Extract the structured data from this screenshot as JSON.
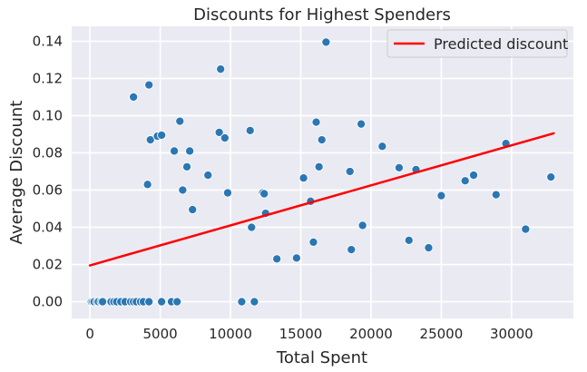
{
  "chart_data": {
    "type": "scatter",
    "title": "Discounts for Highest Spenders",
    "xlabel": "Total Spent",
    "ylabel": "Average Discount",
    "xlim": [
      -1300,
      34400
    ],
    "ylim": [
      -0.009,
      0.148
    ],
    "xticks": [
      0,
      5000,
      10000,
      15000,
      20000,
      25000,
      30000
    ],
    "yticks": [
      0.0,
      0.02,
      0.04,
      0.06,
      0.08,
      0.1,
      0.12,
      0.14
    ],
    "ytick_labels": [
      "0.00",
      "0.02",
      "0.04",
      "0.06",
      "0.08",
      "0.10",
      "0.12",
      "0.14"
    ],
    "grid": true,
    "background": "#eaeaf2",
    "point_color": "#2a77b4",
    "line_color": "#ff0000",
    "legend": {
      "position": "top-right",
      "entries": [
        "Predicted discount"
      ]
    },
    "regression_line": {
      "name": "Predicted discount",
      "x": [
        0,
        33000
      ],
      "y": [
        0.0195,
        0.0905
      ]
    },
    "points": [
      [
        100,
        0
      ],
      [
        200,
        0
      ],
      [
        300,
        0
      ],
      [
        500,
        0
      ],
      [
        600,
        0
      ],
      [
        800,
        0
      ],
      [
        900,
        0
      ],
      [
        1500,
        0
      ],
      [
        1700,
        0
      ],
      [
        1900,
        0
      ],
      [
        2200,
        0
      ],
      [
        2500,
        0
      ],
      [
        2900,
        0
      ],
      [
        3100,
        0
      ],
      [
        3300,
        0
      ],
      [
        3600,
        0
      ],
      [
        3800,
        0
      ],
      [
        4200,
        0
      ],
      [
        5100,
        0
      ],
      [
        5800,
        0
      ],
      [
        6200,
        0
      ],
      [
        10800,
        0
      ],
      [
        11700,
        0
      ],
      [
        3100,
        0.11
      ],
      [
        4200,
        0.1165
      ],
      [
        4100,
        0.063
      ],
      [
        4300,
        0.087
      ],
      [
        4800,
        0.089
      ],
      [
        5100,
        0.0895
      ],
      [
        6000,
        0.081
      ],
      [
        6400,
        0.097
      ],
      [
        6600,
        0.06
      ],
      [
        6900,
        0.0725
      ],
      [
        7100,
        0.081
      ],
      [
        7300,
        0.0495
      ],
      [
        8400,
        0.068
      ],
      [
        9200,
        0.091
      ],
      [
        9300,
        0.125
      ],
      [
        9600,
        0.088
      ],
      [
        9800,
        0.0585
      ],
      [
        11400,
        0.092
      ],
      [
        11500,
        0.04
      ],
      [
        12300,
        0.0585
      ],
      [
        12400,
        0.058
      ],
      [
        12500,
        0.0475
      ],
      [
        13300,
        0.023
      ],
      [
        14700,
        0.0235
      ],
      [
        15200,
        0.0665
      ],
      [
        15700,
        0.054
      ],
      [
        15900,
        0.032
      ],
      [
        16100,
        0.0965
      ],
      [
        16300,
        0.0725
      ],
      [
        16500,
        0.087
      ],
      [
        16800,
        0.1395
      ],
      [
        18500,
        0.07
      ],
      [
        18600,
        0.028
      ],
      [
        19300,
        0.0955
      ],
      [
        19400,
        0.041
      ],
      [
        20800,
        0.0835
      ],
      [
        22000,
        0.072
      ],
      [
        22700,
        0.033
      ],
      [
        23200,
        0.071
      ],
      [
        24100,
        0.029
      ],
      [
        25000,
        0.057
      ],
      [
        26700,
        0.065
      ],
      [
        27300,
        0.068
      ],
      [
        28900,
        0.0575
      ],
      [
        29600,
        0.085
      ],
      [
        31000,
        0.039
      ],
      [
        32800,
        0.067
      ]
    ]
  }
}
